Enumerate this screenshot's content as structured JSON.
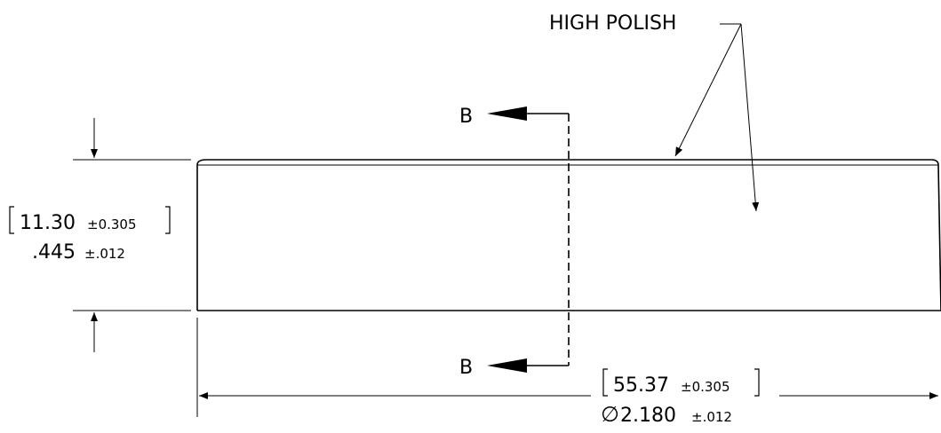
{
  "annotations": {
    "surface_note": "HIGH POLISH",
    "section_label_top": "B",
    "section_label_bottom": "B"
  },
  "height_dimension": {
    "metric_value": "11.30",
    "metric_tolerance": "±0.305",
    "inch_value": ".445",
    "inch_tolerance": "±.012"
  },
  "diameter_dimension": {
    "metric_value": "55.37",
    "metric_tolerance": "±0.305",
    "diameter_symbol": "∅",
    "inch_value": "2.180",
    "inch_tolerance": "±.012"
  },
  "colors": {
    "line": "#000000",
    "background": "#ffffff"
  }
}
